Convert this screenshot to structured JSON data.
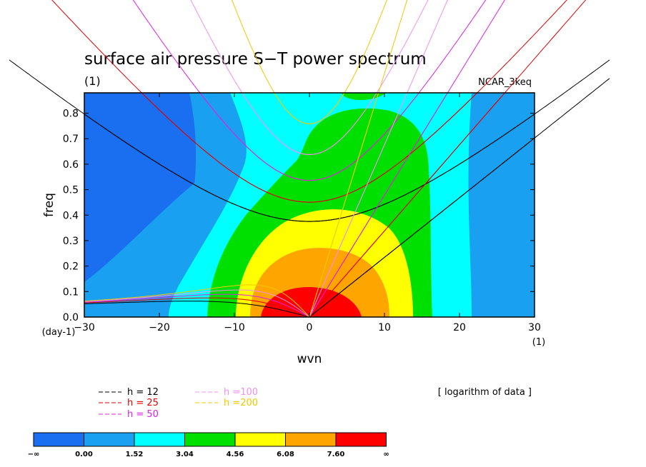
{
  "chart_data": {
    "type": "heatmap",
    "title": "surface air pressure S−T power spectrum",
    "subtitle_left": "(1)",
    "subtitle_right": "NCAR_3keq",
    "xlabel": "wvn",
    "ylabel": "freq",
    "x_unit": "(1)",
    "y_unit": "(day-1)",
    "xlim": [
      -30,
      30
    ],
    "ylim": [
      0,
      0.88
    ],
    "x_ticks": [
      -30,
      -20,
      -10,
      0,
      10,
      20,
      30
    ],
    "x_tick_labels": [
      "−30",
      "−20",
      "−10",
      "0",
      "10",
      "20",
      "30"
    ],
    "y_ticks": [
      0,
      0.1,
      0.2,
      0.3,
      0.4,
      0.5,
      0.6,
      0.7,
      0.8
    ],
    "y_tick_labels": [
      "0.0",
      "0.1",
      "0.2",
      "0.3",
      "0.4",
      "0.5",
      "0.6",
      "0.7",
      "0.8"
    ],
    "note": "[ logarithm of data ]",
    "colorbar": {
      "labels": [
        "−∞",
        "0.00",
        "1.52",
        "3.04",
        "4.56",
        "6.08",
        "7.60",
        "∞"
      ],
      "colors": [
        "#1a6ef0",
        "#1aa0f0",
        "#00ffff",
        "#00e000",
        "#ffff00",
        "#ffa500",
        "#ff0000"
      ]
    },
    "dispersion_curves": [
      {
        "name": "h = 12",
        "color": "#000000"
      },
      {
        "name": "h = 25",
        "color": "#e00000"
      },
      {
        "name": "h = 50",
        "color": "#e020e0"
      },
      {
        "name": "h =100",
        "color": "#f090f0"
      },
      {
        "name": "h =200",
        "color": "#f0c800"
      }
    ]
  }
}
